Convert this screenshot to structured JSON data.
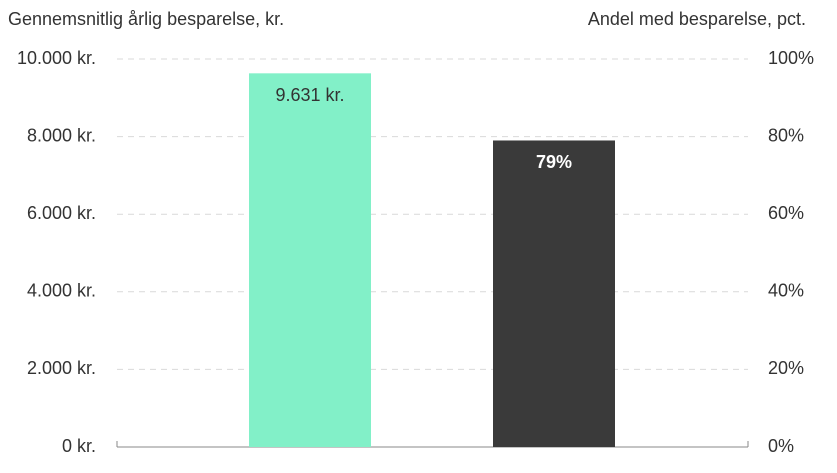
{
  "chart_data": {
    "type": "bar",
    "y_label": "Gennemsnitlig årlig besparelse, kr.",
    "y2_label": "Andel med besparelse, pct.",
    "categories": [
      null,
      null
    ],
    "series": [
      {
        "color": "#82f0c8",
        "values": [
          9631,
          null
        ],
        "value_labels": [
          "9.631 kr.",
          null
        ],
        "label_color": "#333333"
      },
      {
        "color": "#3a3a3a",
        "values": [
          null,
          79
        ],
        "value_labels": [
          null,
          "79%"
        ],
        "axis": "y2",
        "label_color": "#ffffff"
      }
    ],
    "ylim": [
      0,
      10000
    ],
    "yticks": [
      {
        "value": 0,
        "label": "0 kr."
      },
      {
        "value": 2000,
        "label": "2.000 kr."
      },
      {
        "value": 4000,
        "label": "4.000 kr."
      },
      {
        "value": 6000,
        "label": "6.000 kr."
      },
      {
        "value": 8000,
        "label": "8.000 kr."
      },
      {
        "value": 10000,
        "label": "10.000 kr."
      }
    ],
    "y2lim": [
      0,
      100
    ],
    "y2ticks": [
      {
        "value": 0,
        "label": "0%"
      },
      {
        "value": 20,
        "label": "20%"
      },
      {
        "value": 40,
        "label": "40%"
      },
      {
        "value": 60,
        "label": "60%"
      },
      {
        "value": 80,
        "label": "80%"
      },
      {
        "value": 100,
        "label": "100%"
      }
    ],
    "grid": true
  }
}
